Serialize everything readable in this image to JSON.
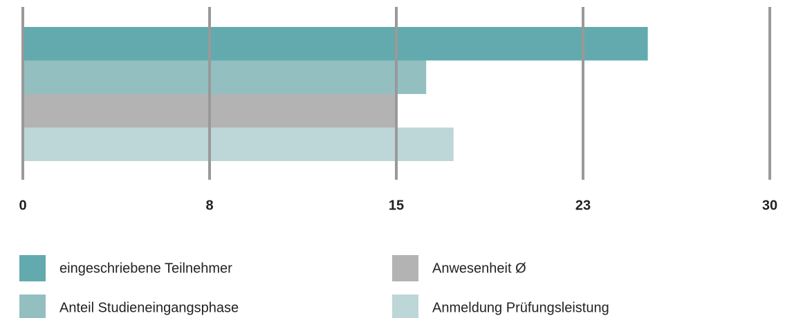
{
  "chart_data": {
    "type": "hbar",
    "categories": [
      null
    ],
    "series": [
      {
        "name": "eingeschriebene Teilnehmer",
        "color": "#62aaad",
        "values": [
          25.1
        ]
      },
      {
        "name": "Anteil Studieneingangsphase",
        "color": "#93bfc0",
        "values": [
          16.2
        ]
      },
      {
        "name": "Anwesenheit Ø",
        "color": "#b3b3b3",
        "values": [
          15
        ]
      },
      {
        "name": "Anmeldung Prüfungsleistung",
        "color": "#bdd6d8",
        "values": [
          17.3
        ]
      }
    ],
    "xlim": [
      0,
      30
    ],
    "xticks": [
      0,
      {
        "value": 7.5,
        "label": "8"
      },
      15,
      {
        "value": 22.5,
        "label": "23"
      },
      30
    ],
    "grid": true,
    "grid_color": "#999999",
    "legend": "bottom"
  }
}
